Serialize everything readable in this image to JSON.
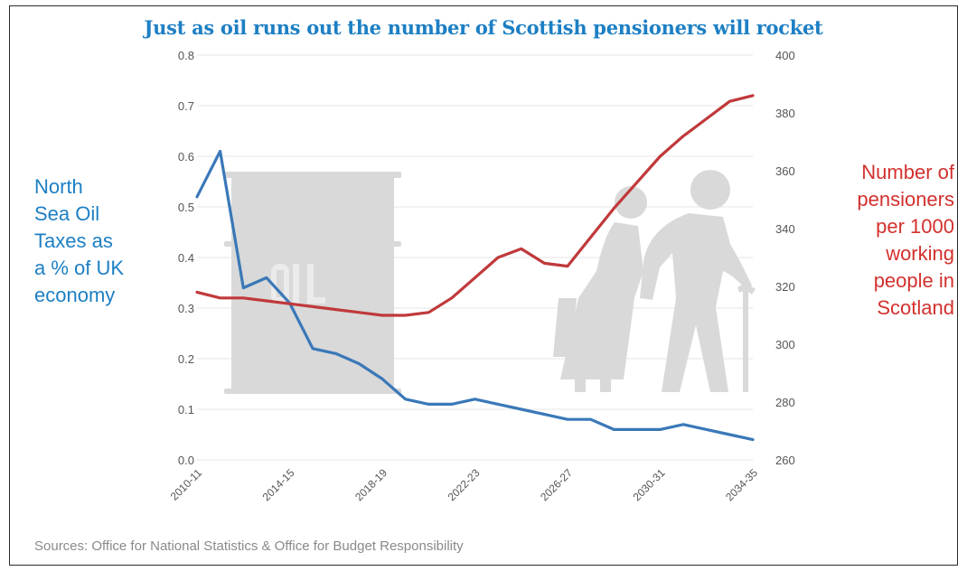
{
  "chart_data": {
    "type": "line",
    "title": "Just as oil runs out the number of Scottish pensioners will rocket",
    "x_tick_labels": [
      "2010-11",
      "2014-15",
      "2018-19",
      "2022-23",
      "2026-27",
      "2030-31",
      "2034-35"
    ],
    "left_axis": {
      "label": "North Sea Oil Taxes as a % of UK economy",
      "ylim": [
        0.0,
        0.8
      ],
      "ticks": [
        "0.0",
        "0.1",
        "0.2",
        "0.3",
        "0.4",
        "0.5",
        "0.6",
        "0.7",
        "0.8"
      ]
    },
    "right_axis": {
      "label": "Number of pensioners per 1000 working people in Scotland",
      "ylim": [
        260,
        400
      ],
      "ticks": [
        "260",
        "280",
        "300",
        "320",
        "340",
        "360",
        "380",
        "400"
      ]
    },
    "x": [
      "2010-11",
      "2011-12",
      "2012-13",
      "2013-14",
      "2014-15",
      "2015-16",
      "2016-17",
      "2017-18",
      "2018-19",
      "2019-20",
      "2020-21",
      "2021-22",
      "2022-23",
      "2023-24",
      "2024-25",
      "2025-26",
      "2026-27",
      "2027-28",
      "2028-29",
      "2029-30",
      "2030-31",
      "2031-32",
      "2032-33",
      "2033-34",
      "2034-35"
    ],
    "series": [
      {
        "name": "North Sea Oil Taxes as a % of UK economy",
        "axis": "left",
        "color": "#3a78b8",
        "values": [
          0.52,
          0.61,
          0.34,
          0.36,
          0.31,
          0.22,
          0.21,
          0.19,
          0.16,
          0.12,
          0.11,
          0.11,
          0.12,
          0.11,
          0.1,
          0.09,
          0.08,
          0.08,
          0.06,
          0.06,
          0.06,
          0.07,
          0.06,
          0.05,
          0.04
        ]
      },
      {
        "name": "Number of pensioners per 1000 working people in Scotland",
        "axis": "right",
        "color": "#c0393b",
        "values": [
          318,
          316,
          316,
          315,
          314,
          313,
          312,
          311,
          310,
          310,
          311,
          316,
          323,
          330,
          333,
          328,
          327,
          337,
          347,
          356,
          365,
          372,
          378,
          384,
          386
        ]
      }
    ],
    "grid": true,
    "legend": "none"
  },
  "sources": "Sources: Office for National Statistics & Office for Budget Responsibility",
  "left_label_lines": [
    "North",
    "Sea Oil",
    "Taxes as",
    "a % of UK",
    "economy"
  ],
  "right_label_lines": [
    "Number of",
    "pensioners",
    "per 1000",
    "working",
    "people in",
    "Scotland"
  ],
  "colors": {
    "title": "#1d7fc4",
    "left_label": "#1d7fc4",
    "right_label": "#d2312e",
    "illustration": "#d9d9d9"
  }
}
